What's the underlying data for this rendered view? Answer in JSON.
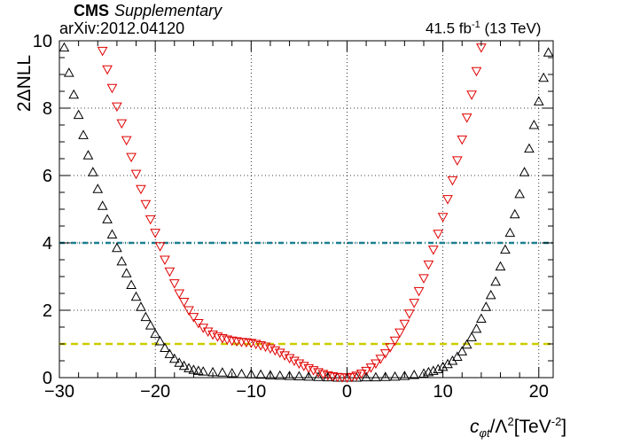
{
  "header": {
    "experiment": "CMS",
    "tag": "Supplementary",
    "ref": "arXiv:2012.04120",
    "lumi": "41.5 fb",
    "lumi_exp": "-1",
    "energy": "(13 TeV)"
  },
  "chart_data": {
    "type": "scatter",
    "xlabel": {
      "c": "c",
      "sub": "φt",
      "mid": "/Λ",
      "sup": "2",
      "unit": "[TeV",
      "unit_exp": "-2",
      "close": "]"
    },
    "ylabel": "2ΔNLL",
    "xlim": [
      -30,
      21.5
    ],
    "ylim": [
      0,
      10
    ],
    "xticks": [
      -30,
      -20,
      -10,
      0,
      10,
      20
    ],
    "xtick_labels": [
      "−30",
      "−20",
      "−10",
      "0",
      "10",
      "20"
    ],
    "yticks": [
      0,
      2,
      4,
      6,
      8,
      10
    ],
    "ytick_labels": [
      "0",
      "2",
      "4",
      "6",
      "8",
      "10"
    ],
    "grid": true,
    "reference_lines": [
      {
        "y": 4,
        "color": "#1a7f8f",
        "style": "dash-dot"
      },
      {
        "y": 1,
        "color": "#cccc00",
        "style": "dashed"
      }
    ],
    "series": [
      {
        "marker": "triangle-up",
        "color": "#000000",
        "points": [
          [
            -29.5,
            9.8
          ],
          [
            -29,
            9.05
          ],
          [
            -28.5,
            8.4
          ],
          [
            -28,
            7.8
          ],
          [
            -27.5,
            7.2
          ],
          [
            -27,
            6.6
          ],
          [
            -26.5,
            6.1
          ],
          [
            -26,
            5.6
          ],
          [
            -25.5,
            5.1
          ],
          [
            -25,
            4.7
          ],
          [
            -24.5,
            4.25
          ],
          [
            -24,
            3.85
          ],
          [
            -23.5,
            3.45
          ],
          [
            -23,
            3.1
          ],
          [
            -22.5,
            2.75
          ],
          [
            -22,
            2.4
          ],
          [
            -21.5,
            2.1
          ],
          [
            -21,
            1.8
          ],
          [
            -20.5,
            1.55
          ],
          [
            -20,
            1.3
          ],
          [
            -19.5,
            1.08
          ],
          [
            -19,
            0.88
          ],
          [
            -18.5,
            0.7
          ],
          [
            -18,
            0.56
          ],
          [
            -17.5,
            0.44
          ],
          [
            -17,
            0.35
          ],
          [
            -16.5,
            0.28
          ],
          [
            -16,
            0.23
          ],
          [
            -15.5,
            0.2
          ],
          [
            -15,
            0.18
          ],
          [
            -14,
            0.16
          ],
          [
            -13,
            0.15
          ],
          [
            -12,
            0.13
          ],
          [
            -11,
            0.11
          ],
          [
            -10,
            0.1
          ],
          [
            -9,
            0.09
          ],
          [
            -8,
            0.07
          ],
          [
            -7,
            0.06
          ],
          [
            -6,
            0.05
          ],
          [
            -5,
            0.04
          ],
          [
            -4,
            0.03
          ],
          [
            -3,
            0.02
          ],
          [
            -2,
            0.01
          ],
          [
            -1,
            0.0
          ],
          [
            0,
            0.0
          ],
          [
            1,
            0.0
          ],
          [
            2,
            0.01
          ],
          [
            3,
            0.01
          ],
          [
            4,
            0.02
          ],
          [
            5,
            0.03
          ],
          [
            6,
            0.05
          ],
          [
            7,
            0.08
          ],
          [
            8,
            0.12
          ],
          [
            8.5,
            0.16
          ],
          [
            9,
            0.2
          ],
          [
            9.5,
            0.25
          ],
          [
            10,
            0.32
          ],
          [
            10.5,
            0.4
          ],
          [
            11,
            0.5
          ],
          [
            11.5,
            0.62
          ],
          [
            12,
            0.78
          ],
          [
            12.5,
            0.98
          ],
          [
            13,
            1.2
          ],
          [
            13.5,
            1.45
          ],
          [
            14,
            1.75
          ],
          [
            14.5,
            2.1
          ],
          [
            15,
            2.45
          ],
          [
            15.5,
            2.85
          ],
          [
            16,
            3.3
          ],
          [
            16.5,
            3.8
          ],
          [
            17,
            4.3
          ],
          [
            17.5,
            4.85
          ],
          [
            18,
            5.45
          ],
          [
            18.5,
            6.1
          ],
          [
            19,
            6.8
          ],
          [
            19.5,
            7.5
          ],
          [
            20,
            8.2
          ],
          [
            20.5,
            8.9
          ],
          [
            21,
            9.65
          ]
        ]
      },
      {
        "marker": "triangle-down",
        "color": "#e00000",
        "points": [
          [
            -25.5,
            9.7
          ],
          [
            -25,
            9.15
          ],
          [
            -24.5,
            8.6
          ],
          [
            -24,
            8.05
          ],
          [
            -23.5,
            7.55
          ],
          [
            -23,
            7.05
          ],
          [
            -22.5,
            6.55
          ],
          [
            -22,
            6.05
          ],
          [
            -21.5,
            5.6
          ],
          [
            -21,
            5.15
          ],
          [
            -20.5,
            4.7
          ],
          [
            -20,
            4.3
          ],
          [
            -19.5,
            3.9
          ],
          [
            -19,
            3.5
          ],
          [
            -18.5,
            3.15
          ],
          [
            -18,
            2.8
          ],
          [
            -17.5,
            2.5
          ],
          [
            -17,
            2.25
          ],
          [
            -16.5,
            2.0
          ],
          [
            -16,
            1.8
          ],
          [
            -15.5,
            1.62
          ],
          [
            -15,
            1.48
          ],
          [
            -14.5,
            1.37
          ],
          [
            -14,
            1.28
          ],
          [
            -13.5,
            1.22
          ],
          [
            -13,
            1.17
          ],
          [
            -12.5,
            1.13
          ],
          [
            -12,
            1.1
          ],
          [
            -11.5,
            1.08
          ],
          [
            -11,
            1.06
          ],
          [
            -10.5,
            1.05
          ],
          [
            -10,
            1.03
          ],
          [
            -9.5,
            1.0
          ],
          [
            -9,
            0.96
          ],
          [
            -8.5,
            0.92
          ],
          [
            -8,
            0.87
          ],
          [
            -7.5,
            0.81
          ],
          [
            -7,
            0.74
          ],
          [
            -6.5,
            0.66
          ],
          [
            -6,
            0.58
          ],
          [
            -5.5,
            0.5
          ],
          [
            -5,
            0.42
          ],
          [
            -4.5,
            0.35
          ],
          [
            -4,
            0.28
          ],
          [
            -3.5,
            0.22
          ],
          [
            -3,
            0.16
          ],
          [
            -2.5,
            0.11
          ],
          [
            -2,
            0.07
          ],
          [
            -1.5,
            0.04
          ],
          [
            -1,
            0.02
          ],
          [
            -0.5,
            0.01
          ],
          [
            0,
            0.0
          ],
          [
            0.5,
            0.02
          ],
          [
            1,
            0.06
          ],
          [
            1.5,
            0.12
          ],
          [
            2,
            0.2
          ],
          [
            2.5,
            0.3
          ],
          [
            3,
            0.42
          ],
          [
            3.5,
            0.56
          ],
          [
            4,
            0.72
          ],
          [
            4.5,
            0.9
          ],
          [
            5,
            1.1
          ],
          [
            5.5,
            1.34
          ],
          [
            6,
            1.6
          ],
          [
            6.5,
            1.9
          ],
          [
            7,
            2.22
          ],
          [
            7.5,
            2.57
          ],
          [
            8,
            2.95
          ],
          [
            8.5,
            3.36
          ],
          [
            9,
            3.8
          ],
          [
            9.5,
            4.27
          ],
          [
            10,
            4.77
          ],
          [
            10.5,
            5.3
          ],
          [
            11,
            5.86
          ],
          [
            11.5,
            6.45
          ],
          [
            12,
            7.07
          ],
          [
            12.5,
            7.72
          ],
          [
            13,
            8.4
          ],
          [
            13.5,
            9.1
          ],
          [
            14,
            9.8
          ]
        ]
      }
    ]
  }
}
